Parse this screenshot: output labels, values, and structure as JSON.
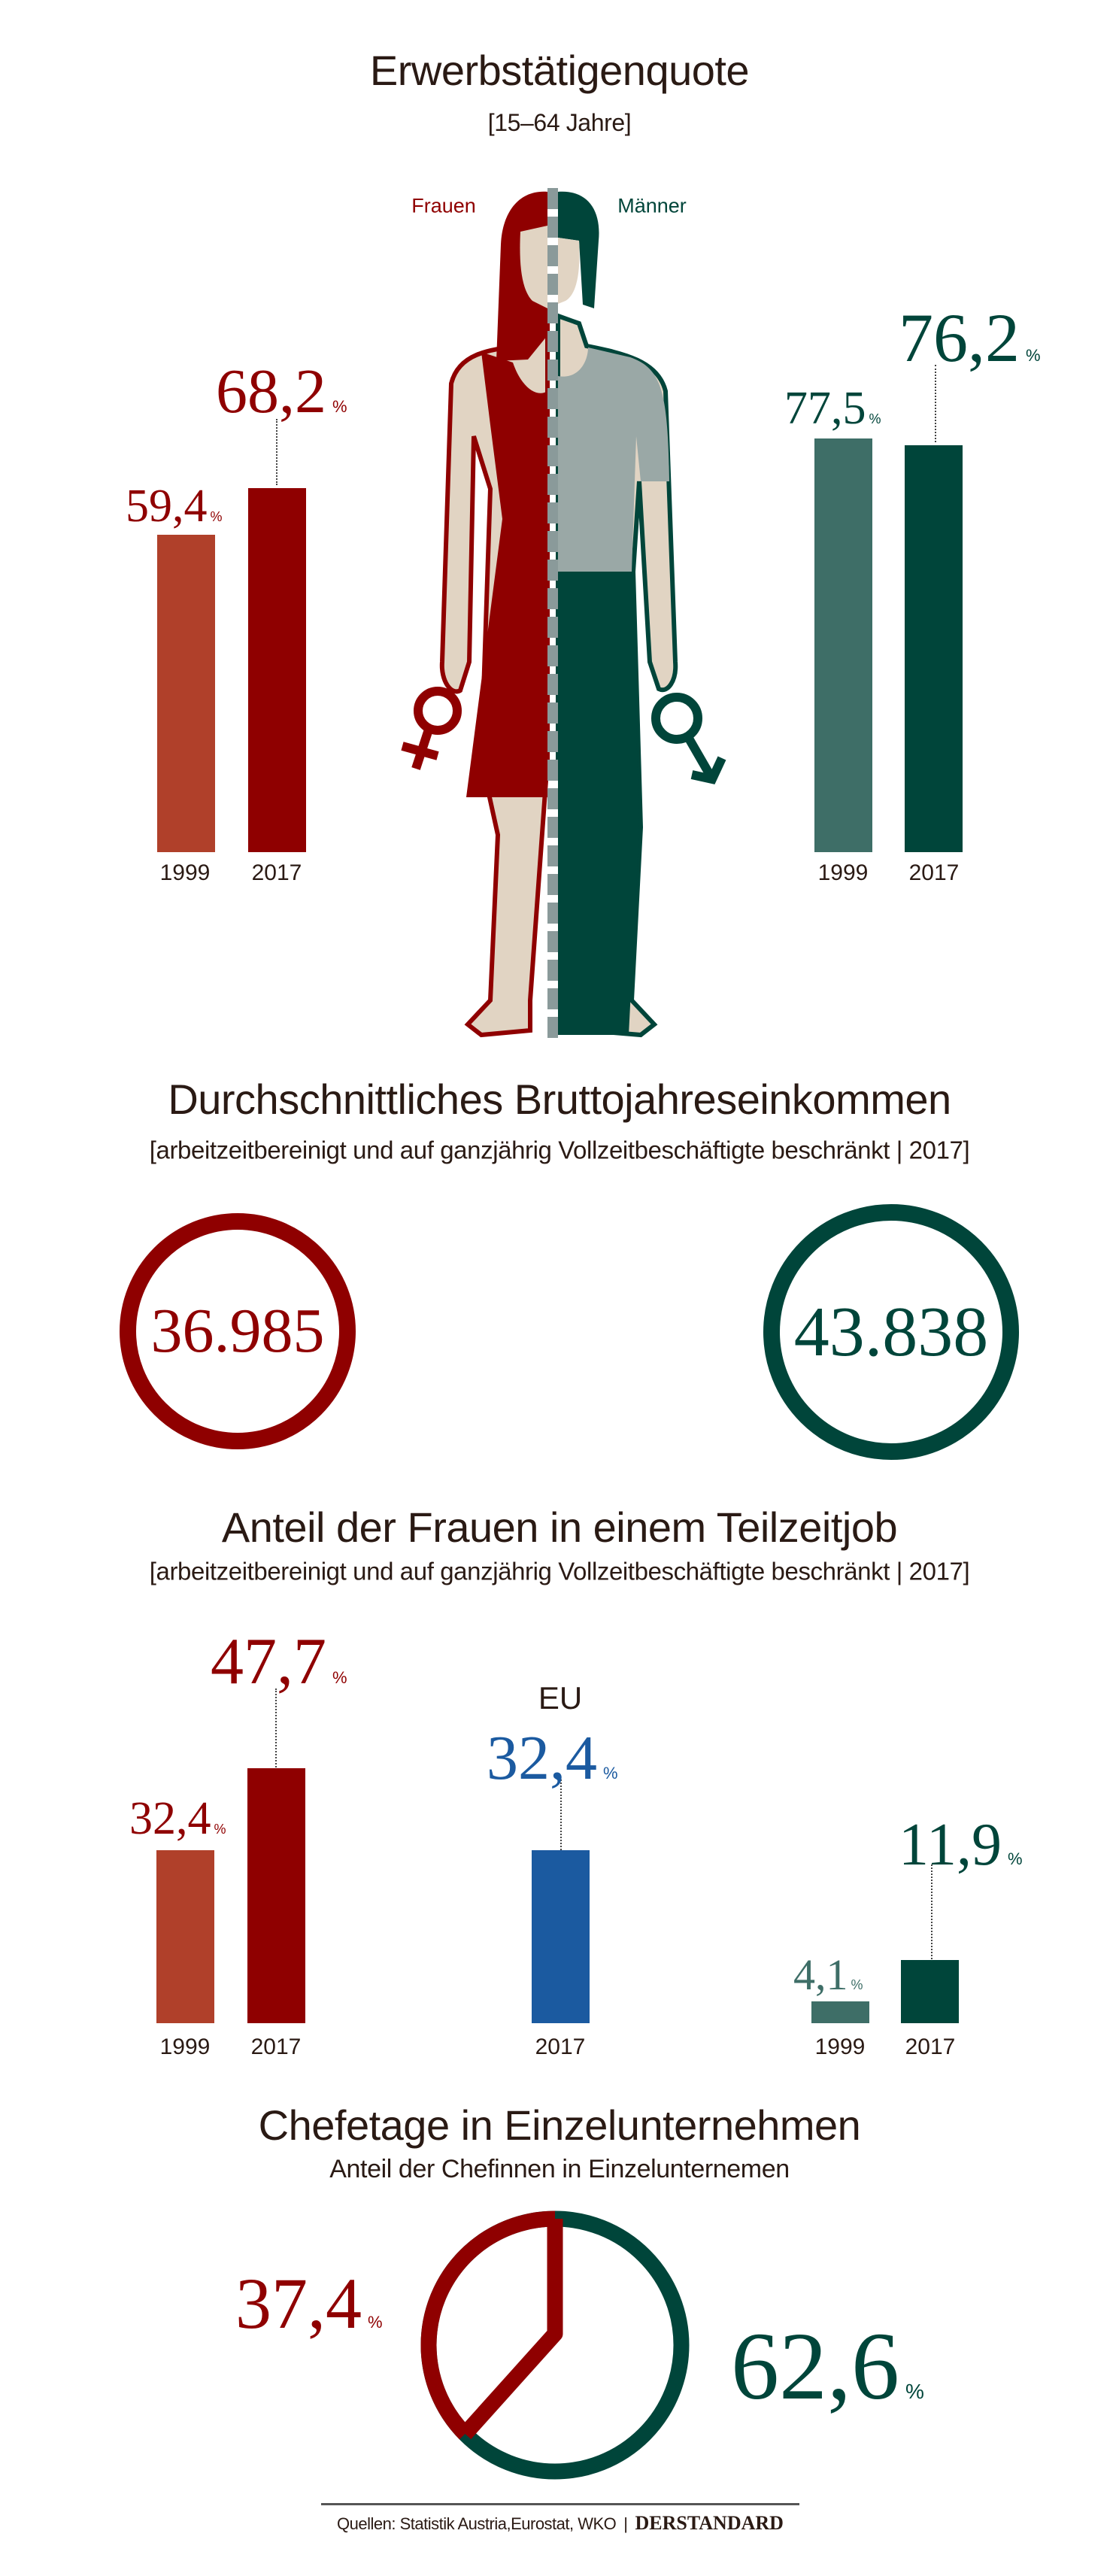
{
  "percent_sign": "%",
  "colors": {
    "women_dark": "#8f0000",
    "women_light": "#b0402a",
    "men_dark": "#00453a",
    "men_light": "#3e6e67",
    "eu": "#1b5aa0",
    "skin": "#e1d4c3",
    "shirt": "#9aa8a6",
    "divider": "#8a9a9a"
  },
  "employment": {
    "title": "Erwerbstätigenquote",
    "subtitle": "[15–64 Jahre]",
    "label_women": "Frauen",
    "label_men": "Männer",
    "women": {
      "y1999": "1999",
      "y2017": "2017",
      "v1999": "59,4",
      "v2017": "68,2"
    },
    "men": {
      "y1999": "1999",
      "y2017": "2017",
      "v1999": "77,5",
      "v2017": "76,2"
    }
  },
  "income": {
    "title": "Durchschnittliches Bruttojahreseinkommen",
    "subtitle": "[arbeitzeitbereinigt und auf ganzjährig Vollzeitbeschäftigte beschränkt | 2017]",
    "women": "36.985",
    "men": "43.838"
  },
  "part_time": {
    "title": "Anteil der Frauen in einem Teilzeitjob",
    "subtitle": "[arbeitzeitbereinigt und auf ganzjährig Vollzeitbeschäftigte beschränkt | 2017]",
    "eu_label": "EU",
    "women": {
      "y1999": "1999",
      "y2017": "2017",
      "v1999": "32,4",
      "v2017": "47,7"
    },
    "eu": {
      "y2017": "2017",
      "v2017": "32,4"
    },
    "men": {
      "y1999": "1999",
      "y2017": "2017",
      "v1999": "4,1",
      "v2017": "11,9"
    }
  },
  "boss": {
    "title": "Chefetage in Einzelunternehmen",
    "subtitle": "Anteil der Chefinnen in Einzelunternemen",
    "women": "37,4",
    "men": "62,6"
  },
  "footer": {
    "source": "Quellen: Statistik Austria,Eurostat, WKO",
    "separator": "|",
    "brand": "DERSTANDARD"
  },
  "chart_data": [
    {
      "type": "bar",
      "title": "Erwerbstätigenquote",
      "subtitle": "[15–64 Jahre]",
      "unit": "%",
      "categories": [
        "1999",
        "2017"
      ],
      "series": [
        {
          "name": "Frauen",
          "values": [
            59.4,
            68.2
          ]
        },
        {
          "name": "Männer",
          "values": [
            77.5,
            76.2
          ]
        }
      ]
    },
    {
      "type": "table",
      "title": "Durchschnittliches Bruttojahreseinkommen",
      "subtitle": "[arbeitzeitbereinigt und auf ganzjährig Vollzeitbeschäftigte beschränkt | 2017]",
      "rows": [
        {
          "name": "Frauen",
          "value": 36985
        },
        {
          "name": "Männer",
          "value": 43838
        }
      ]
    },
    {
      "type": "bar",
      "title": "Anteil der Frauen in einem Teilzeitjob",
      "subtitle": "[arbeitzeitbereinigt und auf ganzjährig Vollzeitbeschäftigte beschränkt | 2017]",
      "unit": "%",
      "series": [
        {
          "name": "Frauen",
          "categories": [
            "1999",
            "2017"
          ],
          "values": [
            32.4,
            47.7
          ]
        },
        {
          "name": "EU",
          "categories": [
            "2017"
          ],
          "values": [
            32.4
          ]
        },
        {
          "name": "Männer",
          "categories": [
            "1999",
            "2017"
          ],
          "values": [
            4.1,
            11.9
          ]
        }
      ]
    },
    {
      "type": "pie",
      "title": "Chefetage in Einzelunternehmen",
      "subtitle": "Anteil der Chefinnen in Einzelunternemen",
      "unit": "%",
      "slices": [
        {
          "name": "Frauen",
          "value": 37.4
        },
        {
          "name": "Männer",
          "value": 62.6
        }
      ]
    }
  ]
}
